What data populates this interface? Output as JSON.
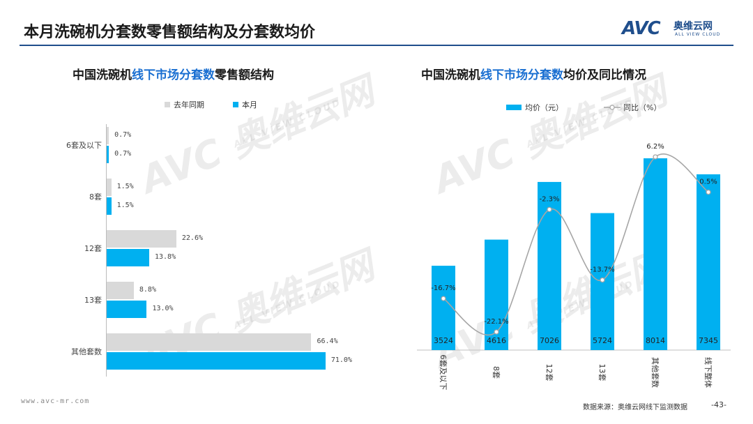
{
  "header": {
    "title": "本月洗碗机分套数零售额结构及分套数均价",
    "logo_mark": "AVC",
    "logo_cn": "奥维云网",
    "logo_en": "ALL VIEW CLOUD"
  },
  "left_panel": {
    "title_pre": "中国洗碗机",
    "title_hl": "线下市场分套数",
    "title_post": "零售额结构"
  },
  "right_panel": {
    "title_pre": "中国洗碗机",
    "title_hl": "线下市场分套数",
    "title_post": "均价及同比情况"
  },
  "watermark": {
    "big": "AVC 奥维云网",
    "small": "ALL VIEW CLOUD"
  },
  "footer": {
    "url": "www.avc-mr.com",
    "source": "数据来源：奥维云网线下监测数据",
    "page": "-43-"
  },
  "colors": {
    "last_year": "#d9d9d9",
    "this_month": "#00b0f0",
    "line": "#a6a6a6",
    "accent": "#1f4e8c"
  },
  "chart_data": [
    {
      "type": "bar",
      "orientation": "horizontal",
      "title": "中国洗碗机线下市场分套数零售额结构",
      "categories": [
        "6套及以下",
        "8套",
        "12套",
        "13套",
        "其他套数"
      ],
      "series": [
        {
          "name": "去年同期",
          "values": [
            0.7,
            1.5,
            22.6,
            8.8,
            66.4
          ],
          "labels": [
            "0.7%",
            "1.5%",
            "22.6%",
            "8.8%",
            "66.4%"
          ]
        },
        {
          "name": "本月",
          "values": [
            0.7,
            1.5,
            13.8,
            13.0,
            71.0
          ],
          "labels": [
            "0.7%",
            "1.5%",
            "13.8%",
            "13.0%",
            "71.0%"
          ]
        }
      ],
      "legend": "top",
      "xlim": [
        0,
        75
      ],
      "grid": false
    },
    {
      "type": "bar",
      "title": "中国洗碗机线下市场分套数均价及同比情况",
      "categories": [
        "6套及以下",
        "8套",
        "12套",
        "13套",
        "其他套数",
        "线下整体"
      ],
      "series": [
        {
          "name": "均价（元）",
          "type": "bar",
          "values": [
            3524,
            4616,
            7026,
            5724,
            8014,
            7345
          ],
          "labels": [
            "3524",
            "4616",
            "7026",
            "5724",
            "8014",
            "7345"
          ]
        },
        {
          "name": "同比（%）",
          "type": "line",
          "values": [
            -16.7,
            -22.1,
            -2.3,
            -13.7,
            6.2,
            0.5
          ],
          "labels": [
            "-16.7%",
            "-22.1%",
            "-2.3%",
            "-13.7%",
            "6.2%",
            "0.5%"
          ]
        }
      ],
      "legend": "top",
      "ylim_bar": [
        0,
        9000
      ],
      "ylim_line": [
        -24,
        8
      ],
      "grid": false
    }
  ]
}
